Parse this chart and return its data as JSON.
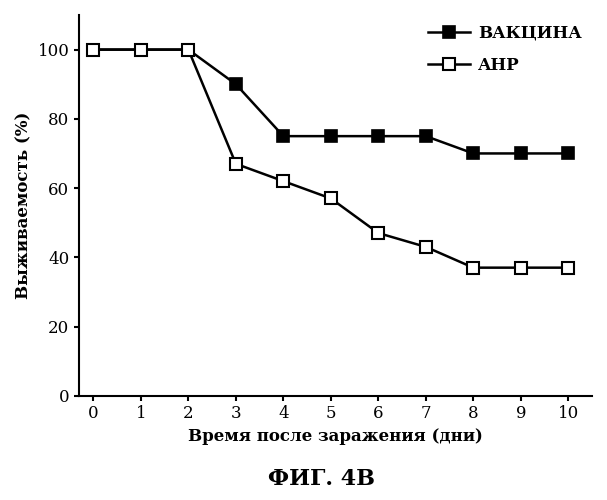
{
  "vaccine_x": [
    0,
    1,
    2,
    3,
    4,
    5,
    6,
    7,
    8,
    9,
    10
  ],
  "vaccine_y": [
    100,
    100,
    100,
    90,
    75,
    75,
    75,
    75,
    70,
    70,
    70
  ],
  "anp_x": [
    0,
    1,
    2,
    3,
    4,
    5,
    6,
    7,
    8,
    9,
    10
  ],
  "anp_y": [
    100,
    100,
    100,
    67,
    62,
    57,
    47,
    43,
    37,
    37,
    37
  ],
  "xlabel": "Время после заражения (дни)",
  "ylabel": "Выживаемость (%)",
  "title": "ФИГ. 4В",
  "legend_vaccine": "ВАКЦИНА",
  "legend_anp": "АНР",
  "xlim": [
    -0.3,
    10.5
  ],
  "ylim": [
    0,
    110
  ],
  "yticks": [
    0,
    20,
    40,
    60,
    80,
    100
  ],
  "xticks": [
    0,
    1,
    2,
    3,
    4,
    5,
    6,
    7,
    8,
    9,
    10
  ],
  "line_color": "#000000",
  "marker_size": 9,
  "linewidth": 1.8,
  "font_family": "serif"
}
